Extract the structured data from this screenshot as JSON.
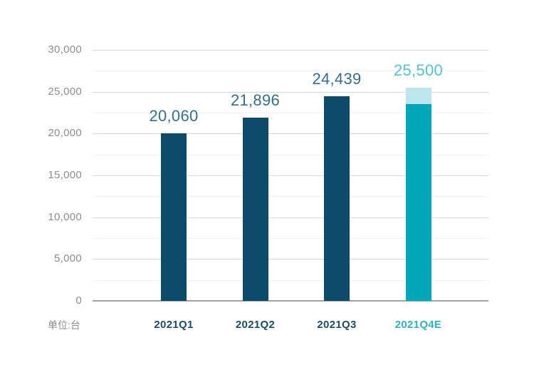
{
  "chart_data": {
    "type": "bar",
    "title": "",
    "unit_label": "单位:台",
    "categories": [
      "2021Q1",
      "2021Q2",
      "2021Q3",
      "2021Q4E"
    ],
    "values": [
      20060,
      21896,
      24439,
      25500
    ],
    "bars": [
      {
        "category": "2021Q1",
        "value": 20060,
        "label": "20,060",
        "label_color": "#316f90",
        "category_color": "#1b4a6b",
        "segments": [
          {
            "value": 20060,
            "color": "#0c4b6a"
          }
        ]
      },
      {
        "category": "2021Q2",
        "value": 21896,
        "label": "21,896",
        "label_color": "#316f90",
        "category_color": "#1b4a6b",
        "segments": [
          {
            "value": 21896,
            "color": "#0c4b6a"
          }
        ]
      },
      {
        "category": "2021Q3",
        "value": 24439,
        "label": "24,439",
        "label_color": "#316f90",
        "category_color": "#1b4a6b",
        "segments": [
          {
            "value": 24439,
            "color": "#0c4b6a"
          }
        ]
      },
      {
        "category": "2021Q4E",
        "value": 25500,
        "label": "25,500",
        "label_color": "#4fc4d4",
        "category_color": "#2bb3c3",
        "estimate": true,
        "segments": [
          {
            "value": 23500,
            "color": "#00a7b6"
          },
          {
            "value": 2000,
            "color": "#bce5ec"
          }
        ]
      }
    ],
    "xlabel": "",
    "ylabel": "",
    "ylim": [
      0,
      30000
    ],
    "y_major_step": 5000,
    "y_minor_step": 2500,
    "y_tick_labels": [
      "0",
      "5,000",
      "10,000",
      "15,000",
      "20,000",
      "25,000",
      "30,000"
    ],
    "grid": "horizontal",
    "legend": "none",
    "colors": {
      "bar_primary": "#0c4b6a",
      "bar_estimate": "#00a7b6",
      "bar_estimate_light": "#bce5ec",
      "value_label_primary": "#316f90",
      "value_label_estimate": "#4fc4d4",
      "category_label_primary": "#1b4a6b",
      "category_label_estimate": "#2bb3c3",
      "axis_text": "#8c8c8c",
      "gridline_major": "#d2d6d7",
      "gridline_minor": "#eef2f3",
      "baseline": "#a3a3a3"
    }
  }
}
